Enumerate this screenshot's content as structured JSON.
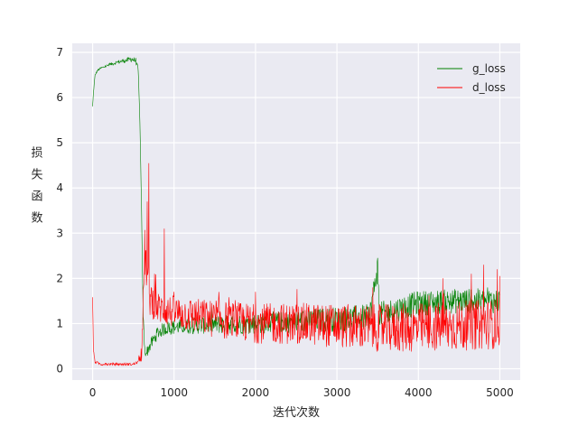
{
  "chart_data": {
    "type": "line",
    "title": "",
    "xlabel": "迭代次数",
    "ylabel": "损失函数",
    "xlim": [
      -250,
      5250
    ],
    "ylim": [
      -0.25,
      7.2
    ],
    "xticks": [
      0,
      1000,
      2000,
      3000,
      4000,
      5000
    ],
    "yticks": [
      0,
      1,
      2,
      3,
      4,
      5,
      6,
      7
    ],
    "grid": true,
    "legend_position": "top-right",
    "series": [
      {
        "name": "g_loss",
        "color": "#008000",
        "points": [
          [
            0,
            5.8
          ],
          [
            10,
            6.1
          ],
          [
            30,
            6.5
          ],
          [
            60,
            6.6
          ],
          [
            100,
            6.65
          ],
          [
            200,
            6.72
          ],
          [
            300,
            6.78
          ],
          [
            400,
            6.82
          ],
          [
            480,
            6.85
          ],
          [
            530,
            6.82
          ],
          [
            560,
            6.6
          ],
          [
            580,
            5.5
          ],
          [
            600,
            3.5
          ],
          [
            620,
            1.2
          ],
          [
            640,
            0.4
          ],
          [
            660,
            0.35
          ],
          [
            700,
            0.5
          ],
          [
            800,
            0.8
          ],
          [
            900,
            0.9
          ],
          [
            1000,
            0.92
          ],
          [
            1200,
            0.95
          ],
          [
            1500,
            0.98
          ],
          [
            2000,
            1.0
          ],
          [
            2500,
            1.05
          ],
          [
            3000,
            1.1
          ],
          [
            3400,
            1.15
          ],
          [
            3500,
            2.25
          ],
          [
            3520,
            1.2
          ],
          [
            3800,
            1.35
          ],
          [
            4000,
            1.45
          ],
          [
            4500,
            1.5
          ],
          [
            5000,
            1.5
          ]
        ],
        "noise": [
          [
            0,
            0.01
          ],
          [
            580,
            0.05
          ],
          [
            700,
            0.1
          ],
          [
            1500,
            0.15
          ],
          [
            3000,
            0.2
          ],
          [
            5000,
            0.2
          ]
        ]
      },
      {
        "name": "d_loss",
        "color": "#ff0000",
        "points": [
          [
            0,
            1.6
          ],
          [
            10,
            0.4
          ],
          [
            30,
            0.15
          ],
          [
            100,
            0.1
          ],
          [
            300,
            0.1
          ],
          [
            500,
            0.1
          ],
          [
            560,
            0.15
          ],
          [
            600,
            0.4
          ],
          [
            620,
            1.4
          ],
          [
            640,
            2.6
          ],
          [
            660,
            2.2
          ],
          [
            700,
            1.6
          ],
          [
            800,
            1.35
          ],
          [
            1000,
            1.25
          ],
          [
            1500,
            1.1
          ],
          [
            2000,
            1.0
          ],
          [
            2500,
            1.0
          ],
          [
            3000,
            0.95
          ],
          [
            3500,
            0.9
          ],
          [
            4000,
            0.9
          ],
          [
            4500,
            0.95
          ],
          [
            5000,
            1.0
          ]
        ],
        "noise": [
          [
            0,
            0.02
          ],
          [
            560,
            0.02
          ],
          [
            640,
            0.35
          ],
          [
            800,
            0.25
          ],
          [
            1500,
            0.3
          ],
          [
            3000,
            0.35
          ],
          [
            4000,
            0.4
          ],
          [
            5000,
            0.4
          ]
        ],
        "spikes": [
          [
            690,
            4.55
          ],
          [
            670,
            3.7
          ],
          [
            880,
            3.1
          ],
          [
            760,
            2.1
          ],
          [
            1550,
            1.7
          ],
          [
            3440,
            1.8
          ],
          [
            4300,
            2.0
          ],
          [
            4650,
            2.1
          ],
          [
            4800,
            2.3
          ],
          [
            4970,
            2.2
          ],
          [
            5000,
            2.05
          ]
        ]
      }
    ]
  }
}
